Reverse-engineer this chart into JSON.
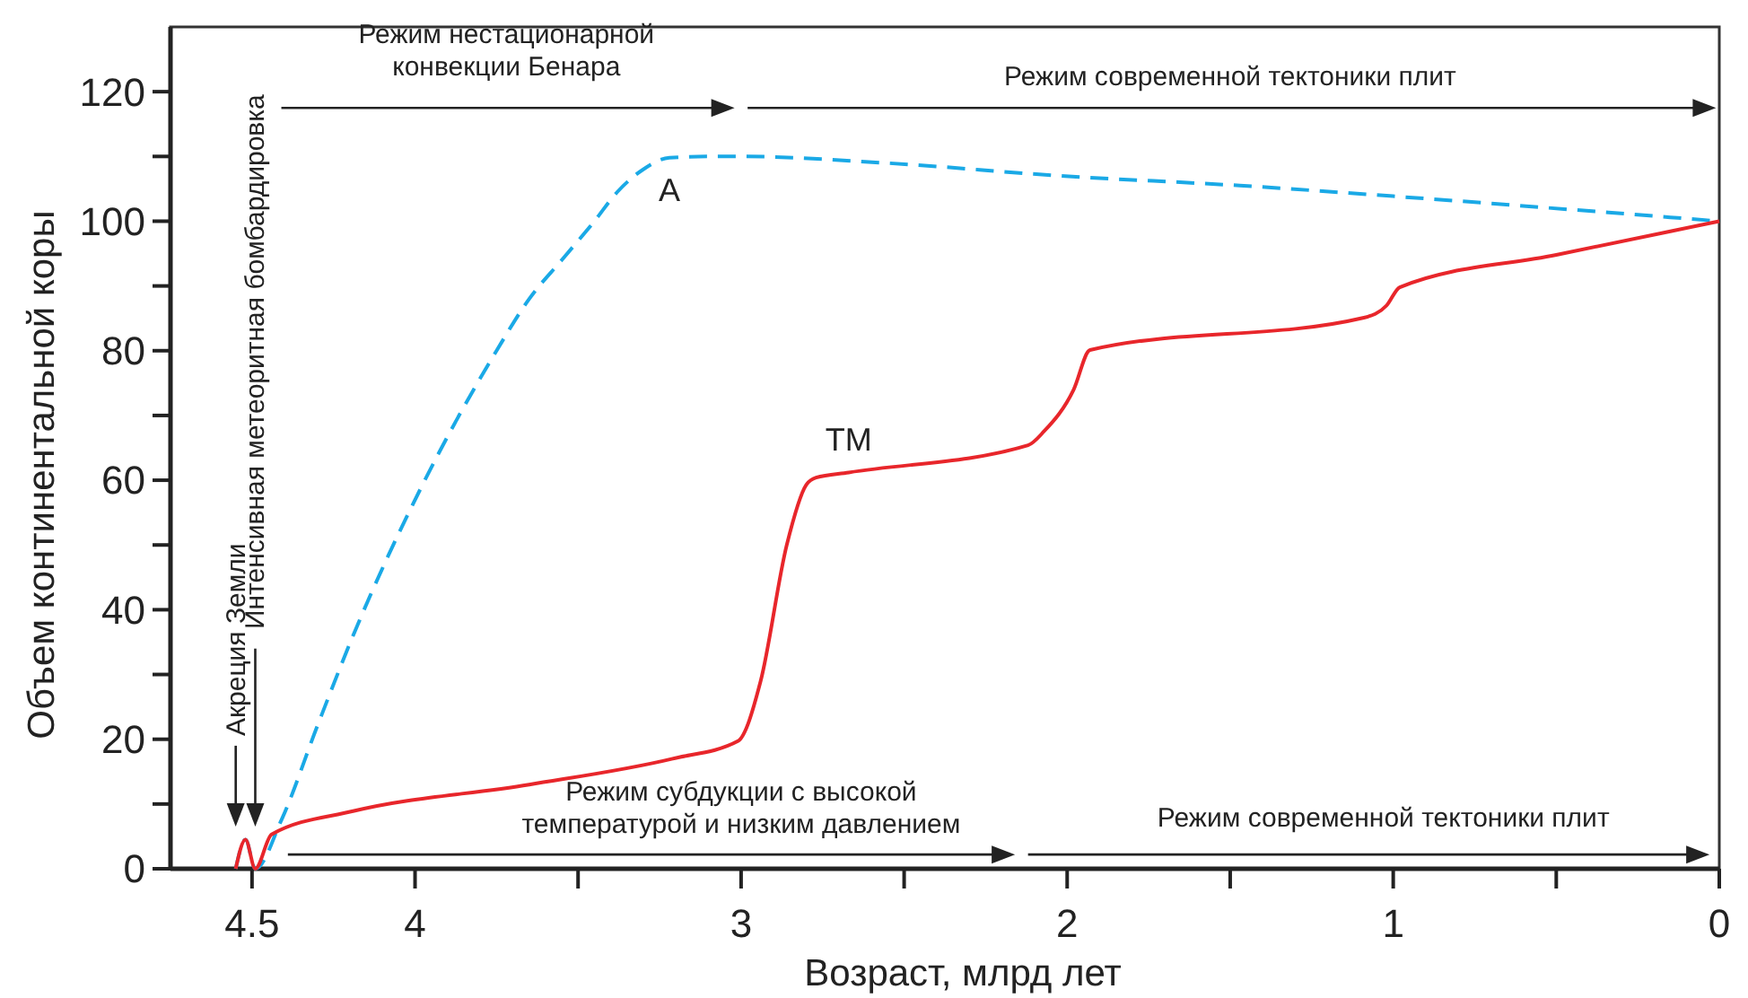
{
  "chart_data": {
    "type": "line",
    "xlabel": "Возраст, млрд лет",
    "ylabel": "Объем континентальной коры",
    "xlim": [
      4.75,
      0
    ],
    "ylim": [
      0,
      130
    ],
    "xticks": [
      4.5,
      4,
      {
        "value": 3.5,
        "label": null
      },
      3,
      {
        "value": 2.5,
        "label": null
      },
      2,
      {
        "value": 1.5,
        "label": null
      },
      1,
      {
        "value": 0.5,
        "label": null
      },
      0
    ],
    "yticks": [
      0,
      {
        "value": 10,
        "label": null
      },
      20,
      {
        "value": 30,
        "label": null
      },
      40,
      {
        "value": 50,
        "label": null
      },
      60,
      {
        "value": 70,
        "label": null
      },
      80,
      {
        "value": 90,
        "label": null
      },
      100,
      {
        "value": 110,
        "label": null
      },
      120
    ],
    "grid": false,
    "marker": "none",
    "series": [
      {
        "name": "A",
        "color": "#1aa9e6",
        "line_style": "dashed",
        "x": [
          4.55,
          4.52,
          4.49,
          4.41,
          4.3,
          4.19,
          3.98,
          3.75,
          3.65,
          3.55,
          3.45,
          3.38,
          3.3,
          3.22,
          3.1,
          3.0,
          2.56,
          2.02,
          1.47,
          0.93,
          0.38,
          0
        ],
        "values": [
          0,
          4.5,
          0,
          7.5,
          22,
          36,
          59,
          80,
          88,
          94,
          100,
          104.5,
          108,
          109.8,
          110,
          110,
          109,
          107,
          105.5,
          103.6,
          101.5,
          100
        ]
      },
      {
        "name": "TM",
        "color": "#e8262b",
        "line_style": "solid",
        "x": [
          4.55,
          4.52,
          4.49,
          4.44,
          4.19,
          3.65,
          3.21,
          3.01,
          2.94,
          2.86,
          2.8,
          2.77,
          2.67,
          2.12,
          2.07,
          1.98,
          1.93,
          1.09,
          1.02,
          0.98,
          0.5,
          0
        ],
        "values": [
          0,
          4.5,
          0,
          5.3,
          8.9,
          13,
          17,
          19.7,
          29,
          50,
          59.3,
          60.4,
          61.2,
          65.4,
          67.6,
          74,
          80.1,
          85.1,
          87,
          89.8,
          94.8,
          100
        ]
      }
    ],
    "annotations": [
      "Режим нестационарной\nконвекции Бенара",
      "Режим современной тектоники плит",
      "Режим субдукции с высокой\nтемпературой и низким давлением",
      "Режим современной тектоники плит",
      "Акреция Земли",
      "Интенсивная метеоритная бомбардировка"
    ]
  }
}
